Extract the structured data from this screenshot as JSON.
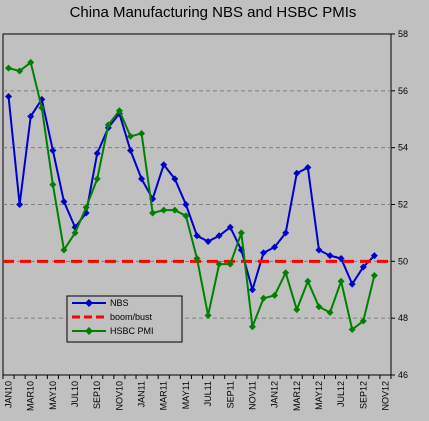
{
  "chart_data": {
    "type": "line",
    "title": "China Manufacturing NBS and HSBC  PMIs",
    "y_axis_side": "right",
    "ylim": [
      46,
      58
    ],
    "yticks": [
      46,
      48,
      50,
      52,
      54,
      56,
      58
    ],
    "grid": "horizontal dashed",
    "x_months": [
      "JAN10",
      "FEB10",
      "MAR10",
      "APR10",
      "MAY10",
      "JUN10",
      "JUL10",
      "AUG10",
      "SEP10",
      "OCT10",
      "NOV10",
      "DEC10",
      "JAN11",
      "FEB11",
      "MAR11",
      "APR11",
      "MAY11",
      "JUN11",
      "JUL11",
      "AUG11",
      "SEP11",
      "OCT11",
      "NOV11",
      "DEC11",
      "JAN12",
      "FEB12",
      "MAR12",
      "APR12",
      "MAY12",
      "JUN12",
      "JUL12",
      "AUG12",
      "SEP12",
      "OCT12",
      "NOV12"
    ],
    "xtick_labels": [
      "JAN10",
      "MAR10",
      "MAY10",
      "JUL10",
      "SEP10",
      "NOV10",
      "JAN11",
      "MAR11",
      "MAY11",
      "JUL11",
      "SEP11",
      "NOV11",
      "JAN12",
      "MAR12",
      "MAY12",
      "JUL12",
      "SEP12",
      "NOV12"
    ],
    "legend_placement": "lower-left",
    "series": [
      {
        "name": "NBS",
        "color": "#0000cc",
        "marker": "diamond",
        "values": [
          55.8,
          52.0,
          55.1,
          55.7,
          53.9,
          52.1,
          51.2,
          51.7,
          53.8,
          54.7,
          55.2,
          53.9,
          52.9,
          52.2,
          53.4,
          52.9,
          52.0,
          50.9,
          50.7,
          50.9,
          51.2,
          50.4,
          49.0,
          50.3,
          50.5,
          51.0,
          53.1,
          53.3,
          50.4,
          50.2,
          50.1,
          49.2,
          49.8,
          50.2,
          null
        ]
      },
      {
        "name": "boom/bust",
        "color": "#ff0000",
        "style": "dashed",
        "values": [
          50,
          50,
          50,
          50,
          50,
          50,
          50,
          50,
          50,
          50,
          50,
          50,
          50,
          50,
          50,
          50,
          50,
          50,
          50,
          50,
          50,
          50,
          50,
          50,
          50,
          50,
          50,
          50,
          50,
          50,
          50,
          50,
          50,
          50,
          50
        ]
      },
      {
        "name": "HSBC PMI",
        "color": "#008000",
        "marker": "diamond",
        "values": [
          56.8,
          56.7,
          57.0,
          55.4,
          52.7,
          50.4,
          51.0,
          51.9,
          52.9,
          54.8,
          55.3,
          54.4,
          54.5,
          51.7,
          51.8,
          51.8,
          51.6,
          50.1,
          48.1,
          49.9,
          49.9,
          51.0,
          47.7,
          48.7,
          48.8,
          49.6,
          48.3,
          49.3,
          48.4,
          48.2,
          49.3,
          47.6,
          47.9,
          49.5,
          null
        ]
      }
    ]
  }
}
